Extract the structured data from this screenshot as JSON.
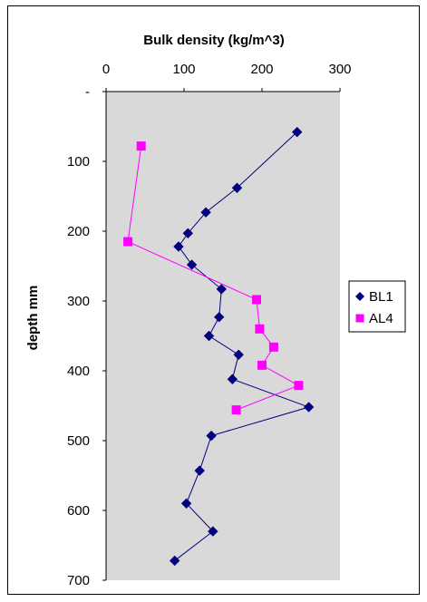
{
  "chart_data": {
    "type": "line",
    "orientation": "x-top, depth-down",
    "xlabel": "Bulk density (kg/m^3)",
    "ylabel": "depth mm",
    "xlim": [
      0,
      300
    ],
    "ylim": [
      0,
      700
    ],
    "x_ticks": [
      "0",
      "100",
      "200",
      "300"
    ],
    "y_tick_values": [
      0,
      100,
      200,
      300,
      400,
      500,
      600,
      700
    ],
    "y_tick_labels": [
      "-",
      "100",
      "200",
      "300",
      "400",
      "500",
      "600",
      "700"
    ],
    "grid": false,
    "plot_background": "#d9d9d9",
    "legend_position": "right",
    "series": [
      {
        "name": "BL1",
        "color": "#000080",
        "marker": "diamond",
        "points": [
          {
            "x": 245,
            "y": 58
          },
          {
            "x": 168,
            "y": 138
          },
          {
            "x": 128,
            "y": 173
          },
          {
            "x": 105,
            "y": 203
          },
          {
            "x": 93,
            "y": 222
          },
          {
            "x": 110,
            "y": 248
          },
          {
            "x": 148,
            "y": 283
          },
          {
            "x": 145,
            "y": 323
          },
          {
            "x": 132,
            "y": 350
          },
          {
            "x": 170,
            "y": 377
          },
          {
            "x": 162,
            "y": 412
          },
          {
            "x": 260,
            "y": 452
          },
          {
            "x": 135,
            "y": 493
          },
          {
            "x": 120,
            "y": 543
          },
          {
            "x": 103,
            "y": 590
          },
          {
            "x": 137,
            "y": 630
          },
          {
            "x": 88,
            "y": 672
          }
        ]
      },
      {
        "name": "AL4",
        "color": "#ff00ff",
        "marker": "square",
        "points": [
          {
            "x": 45,
            "y": 78
          },
          {
            "x": 28,
            "y": 215
          },
          {
            "x": 193,
            "y": 298
          },
          {
            "x": 197,
            "y": 340
          },
          {
            "x": 215,
            "y": 366
          },
          {
            "x": 200,
            "y": 392
          },
          {
            "x": 247,
            "y": 421
          },
          {
            "x": 167,
            "y": 456
          }
        ]
      }
    ]
  }
}
